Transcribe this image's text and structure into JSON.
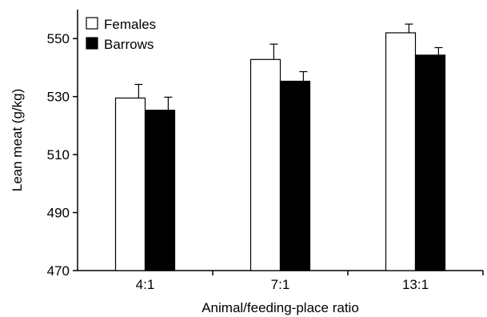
{
  "chart_data": {
    "type": "bar",
    "title": "",
    "xlabel": "Animal/feeding-place ratio",
    "ylabel": "Lean meat (g/kg)",
    "categories": [
      "4:1",
      "7:1",
      "13:1"
    ],
    "ylim": [
      470,
      560
    ],
    "yticks": [
      470,
      490,
      510,
      530,
      550
    ],
    "ytick_labels": [
      "470",
      "490",
      "510",
      "530",
      "550"
    ],
    "grid": false,
    "legend_position": "top-left",
    "series": [
      {
        "name": "Females",
        "values": [
          529.5,
          542.8,
          552.0
        ],
        "errors": [
          4.7,
          5.3,
          3.0
        ],
        "color": "#ffffff"
      },
      {
        "name": "Barrows",
        "values": [
          525.3,
          535.3,
          544.3
        ],
        "errors": [
          4.5,
          3.3,
          2.6
        ],
        "color": "#000000"
      }
    ]
  }
}
